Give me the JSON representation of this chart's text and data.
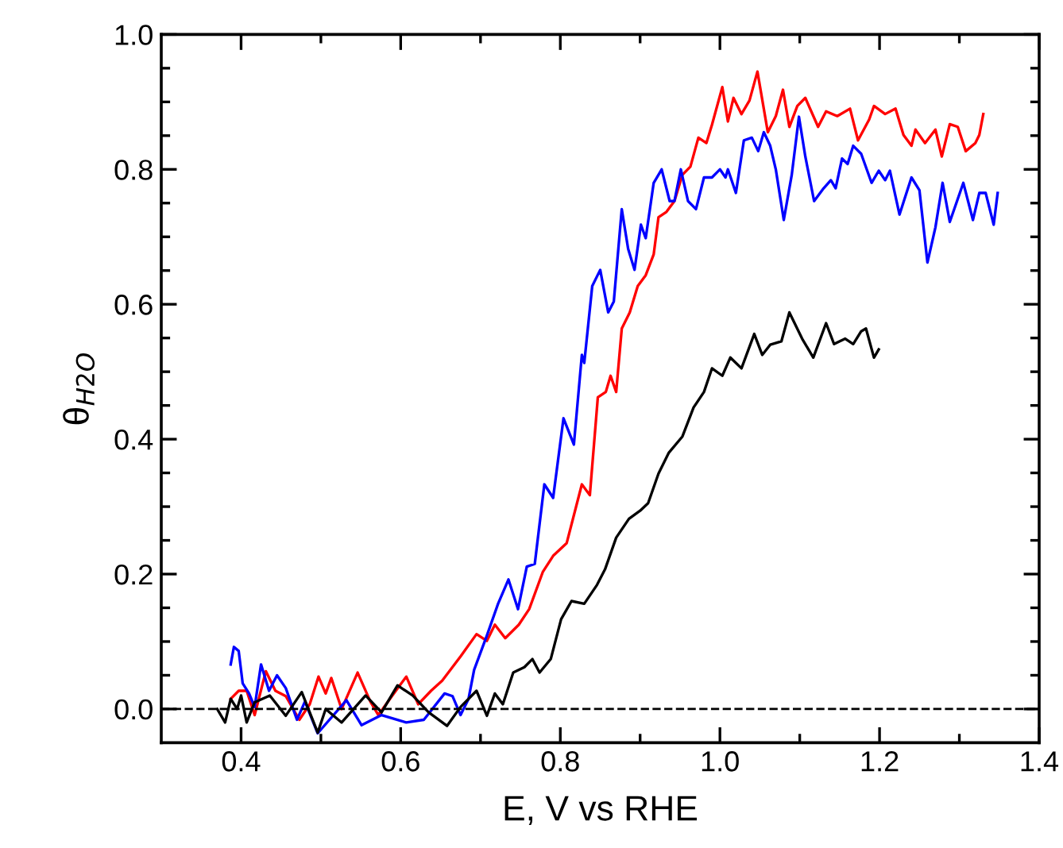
{
  "chart_data": {
    "type": "line",
    "xlabel": "E, V vs RHE",
    "ylabel": "θ$_{H2O}$",
    "xlim": [
      0.3,
      1.4
    ],
    "ylim": [
      -0.05,
      1.0
    ],
    "xticks": [
      0.4,
      {
        "value": 0.5,
        "label": null
      },
      0.6,
      {
        "value": 0.7,
        "label": null
      },
      0.8,
      {
        "value": 0.9,
        "label": null
      },
      {
        "value": 1.0,
        "label": "1.0"
      },
      {
        "value": 1.1,
        "label": null
      },
      1.2,
      {
        "value": 1.3,
        "label": null
      },
      1.4
    ],
    "yticks": [
      {
        "value": 0.0,
        "label": "0.0"
      },
      {
        "value": 0.05,
        "label": null
      },
      {
        "value": 0.1,
        "label": null
      },
      {
        "value": 0.15,
        "label": null
      },
      0.2,
      {
        "value": 0.25,
        "label": null
      },
      {
        "value": 0.3,
        "label": null
      },
      {
        "value": 0.35,
        "label": null
      },
      0.4,
      {
        "value": 0.45,
        "label": null
      },
      {
        "value": 0.5,
        "label": null
      },
      {
        "value": 0.55,
        "label": null
      },
      0.6,
      {
        "value": 0.65,
        "label": null
      },
      {
        "value": 0.7,
        "label": null
      },
      {
        "value": 0.75,
        "label": null
      },
      0.8,
      {
        "value": 0.85,
        "label": null
      },
      {
        "value": 0.9,
        "label": null
      },
      {
        "value": 0.95,
        "label": null
      },
      {
        "value": 1.0,
        "label": "1.0"
      }
    ],
    "grid": false,
    "legend": false,
    "marker": "none",
    "line_style": "solid",
    "ref_lines": [
      {
        "axis": "y",
        "value": 0.0,
        "color": "#000000",
        "line_style": "dashed"
      }
    ],
    "series": [
      {
        "color": "#ff0000",
        "x": [
          0.387,
          0.397,
          0.407,
          0.417,
          0.431,
          0.443,
          0.456,
          0.473,
          0.486,
          0.497,
          0.506,
          0.513,
          0.526,
          0.546,
          0.562,
          0.572,
          0.589,
          0.607,
          0.622,
          0.638,
          0.652,
          0.675,
          0.695,
          0.708,
          0.718,
          0.731,
          0.748,
          0.761,
          0.778,
          0.791,
          0.808,
          0.827,
          0.837,
          0.847,
          0.857,
          0.863,
          0.87,
          0.877,
          0.887,
          0.897,
          0.907,
          0.917,
          0.923,
          0.933,
          0.943,
          0.953,
          0.963,
          0.973,
          0.983,
          0.99,
          1.003,
          1.01,
          1.017,
          1.027,
          1.037,
          1.047,
          1.06,
          1.07,
          1.079,
          1.087,
          1.097,
          1.107,
          1.123,
          1.133,
          1.147,
          1.163,
          1.173,
          1.187,
          1.193,
          1.207,
          1.22,
          1.23,
          1.24,
          1.245,
          1.257,
          1.27,
          1.278,
          1.288,
          1.298,
          1.308,
          1.32,
          1.325,
          1.33
        ],
        "values": [
          0.015,
          0.027,
          0.027,
          -0.009,
          0.056,
          0.027,
          0.019,
          -0.016,
          0.007,
          0.048,
          0.023,
          0.046,
          0.0,
          0.054,
          0.011,
          -0.009,
          0.019,
          0.048,
          0.007,
          0.027,
          0.042,
          0.078,
          0.111,
          0.101,
          0.125,
          0.105,
          0.125,
          0.148,
          0.203,
          0.227,
          0.246,
          0.333,
          0.317,
          0.462,
          0.47,
          0.494,
          0.47,
          0.564,
          0.588,
          0.627,
          0.643,
          0.674,
          0.729,
          0.737,
          0.753,
          0.792,
          0.804,
          0.847,
          0.839,
          0.866,
          0.922,
          0.871,
          0.906,
          0.882,
          0.902,
          0.945,
          0.855,
          0.879,
          0.918,
          0.863,
          0.894,
          0.906,
          0.863,
          0.886,
          0.879,
          0.89,
          0.843,
          0.874,
          0.894,
          0.882,
          0.89,
          0.851,
          0.835,
          0.859,
          0.839,
          0.859,
          0.819,
          0.867,
          0.863,
          0.827,
          0.839,
          0.851,
          0.882
        ]
      },
      {
        "color": "#0000ff",
        "x": [
          0.387,
          0.391,
          0.397,
          0.402,
          0.41,
          0.417,
          0.425,
          0.435,
          0.445,
          0.456,
          0.47,
          0.48,
          0.496,
          0.516,
          0.532,
          0.542,
          0.551,
          0.559,
          0.576,
          0.596,
          0.607,
          0.615,
          0.629,
          0.639,
          0.655,
          0.665,
          0.675,
          0.685,
          0.692,
          0.708,
          0.722,
          0.735,
          0.747,
          0.758,
          0.768,
          0.78,
          0.791,
          0.804,
          0.817,
          0.827,
          0.83,
          0.84,
          0.85,
          0.86,
          0.867,
          0.877,
          0.885,
          0.893,
          0.901,
          0.907,
          0.917,
          0.927,
          0.937,
          0.943,
          0.951,
          0.96,
          0.97,
          0.98,
          0.99,
          1.0,
          1.007,
          1.01,
          1.02,
          1.03,
          1.04,
          1.048,
          1.055,
          1.063,
          1.07,
          1.08,
          1.09,
          1.099,
          1.107,
          1.118,
          1.13,
          1.139,
          1.145,
          1.153,
          1.16,
          1.167,
          1.177,
          1.19,
          1.199,
          1.207,
          1.213,
          1.225,
          1.24,
          1.25,
          1.26,
          1.27,
          1.279,
          1.288,
          1.305,
          1.317,
          1.325,
          1.333,
          1.343,
          1.348
        ],
        "values": [
          0.066,
          0.092,
          0.086,
          0.038,
          0.023,
          0.003,
          0.066,
          0.027,
          0.05,
          0.031,
          -0.016,
          0.011,
          -0.036,
          null,
          0.013,
          null,
          -0.024,
          null,
          -0.009,
          null,
          -0.02,
          null,
          -0.016,
          null,
          0.023,
          0.019,
          -0.009,
          0.015,
          0.058,
          0.109,
          0.156,
          0.192,
          0.148,
          0.211,
          0.215,
          0.333,
          0.313,
          0.431,
          0.392,
          0.525,
          0.513,
          0.627,
          0.651,
          0.588,
          0.604,
          0.741,
          0.682,
          0.651,
          0.718,
          0.698,
          0.78,
          0.8,
          0.753,
          0.753,
          0.8,
          0.753,
          0.741,
          0.788,
          0.788,
          0.8,
          0.788,
          0.8,
          0.765,
          0.843,
          0.847,
          0.827,
          0.855,
          0.835,
          0.8,
          0.725,
          0.792,
          0.878,
          0.819,
          0.753,
          0.772,
          0.784,
          0.772,
          0.816,
          0.808,
          0.835,
          0.823,
          0.78,
          0.798,
          0.784,
          0.798,
          0.733,
          0.788,
          0.769,
          0.662,
          0.714,
          0.78,
          0.722,
          0.78,
          0.725,
          0.765,
          0.765,
          0.718,
          0.765
        ]
      },
      {
        "color": "#000000",
        "x": [
          0.37,
          0.38,
          0.387,
          0.395,
          0.4,
          0.407,
          0.417,
          0.436,
          0.456,
          0.476,
          0.496,
          0.506,
          0.526,
          0.556,
          0.576,
          0.596,
          0.615,
          0.635,
          0.658,
          0.675,
          0.695,
          0.708,
          0.718,
          0.728,
          0.741,
          0.755,
          0.765,
          0.774,
          0.788,
          0.801,
          0.814,
          0.83,
          0.846,
          0.856,
          0.87,
          0.886,
          0.9,
          0.91,
          0.923,
          0.936,
          0.953,
          0.967,
          0.98,
          0.99,
          1.003,
          1.013,
          1.027,
          1.043,
          1.053,
          1.063,
          1.077,
          1.087,
          1.103,
          1.117,
          1.133,
          1.143,
          1.157,
          1.167,
          1.177,
          1.183,
          1.193,
          1.199
        ],
        "values": [
          0.0,
          -0.02,
          0.015,
          0.0,
          0.02,
          -0.02,
          0.01,
          0.02,
          -0.01,
          0.025,
          -0.035,
          0.0,
          -0.02,
          0.02,
          -0.005,
          0.035,
          0.02,
          -0.005,
          -0.025,
          0.003,
          0.027,
          -0.01,
          0.023,
          0.007,
          0.054,
          0.062,
          0.074,
          0.054,
          0.074,
          0.133,
          0.16,
          0.156,
          0.184,
          0.207,
          0.254,
          0.282,
          0.294,
          0.305,
          0.349,
          0.38,
          0.404,
          0.447,
          0.47,
          0.505,
          0.494,
          0.521,
          0.505,
          0.556,
          0.525,
          0.54,
          0.545,
          0.588,
          0.549,
          0.521,
          0.572,
          0.541,
          0.549,
          0.541,
          0.56,
          0.564,
          0.521,
          0.533
        ]
      }
    ]
  }
}
